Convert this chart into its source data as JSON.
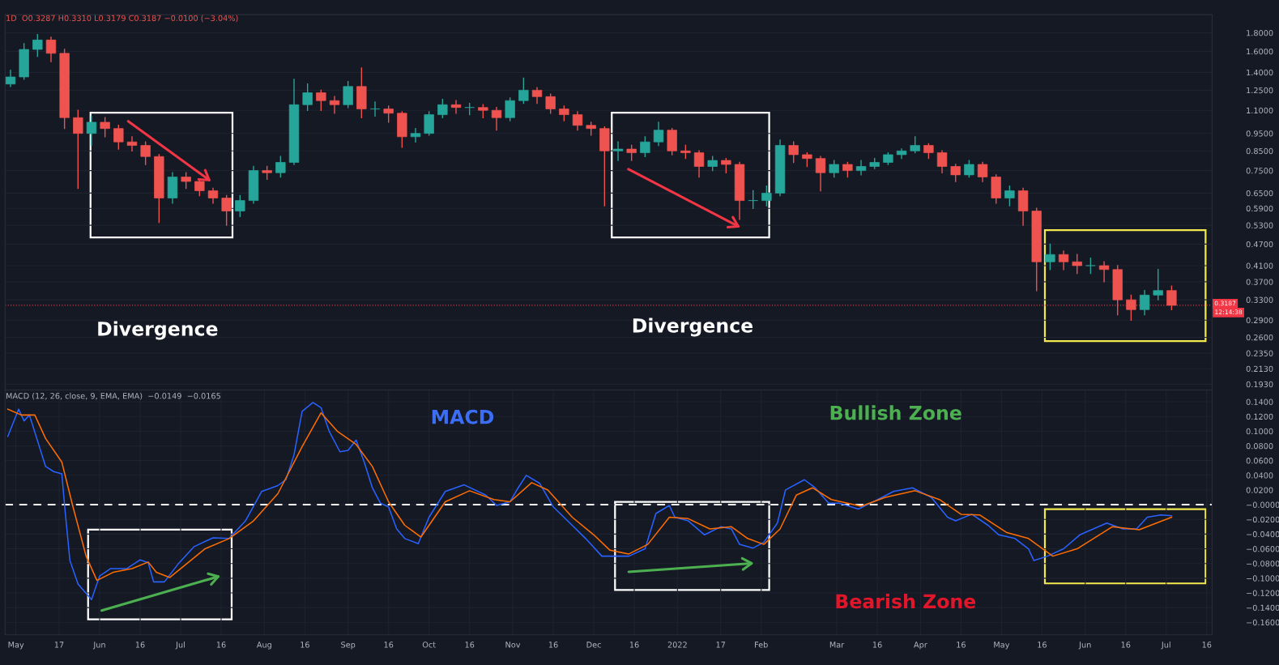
{
  "chart_data": [
    {
      "type": "candlestick",
      "log": "y",
      "tick_labels": "y",
      "grid": "y",
      "colors": [
        "#26a69a",
        "#26a69a",
        "#26a69a",
        "#ef5350",
        "#ef5350",
        "#ef5350",
        "#26a69a",
        "#ef5350",
        "#ef5350",
        "#ef5350",
        "#ef5350",
        "#ef5350",
        "#26a69a",
        "#ef5350",
        "#ef5350",
        "#ef5350",
        "#ef5350",
        "#26a69a",
        "#26a69a",
        "#ef5350",
        "#26a69a",
        "#26a69a",
        "#26a69a",
        "#ef5350",
        "#ef5350",
        "#26a69a",
        "#ef5350",
        "#26a69a",
        "#ef5350",
        "#ef5350",
        "#26a69a",
        "#26a69a",
        "#26a69a",
        "#ef5350",
        "#26a69a",
        "#ef5350",
        "#ef5350",
        "#26a69a",
        "#26a69a",
        "#ef5350",
        "#ef5350",
        "#ef5350",
        "#ef5350",
        "#ef5350",
        "#ef5350",
        "#26a69a",
        "#ef5350",
        "#26a69a",
        "#26a69a",
        "#ef5350",
        "#ef5350",
        "#ef5350",
        "#26a69a",
        "#ef5350",
        "#ef5350",
        "#26a69a",
        "#26a69a",
        "#26a69a",
        "#ef5350",
        "#ef5350",
        "#ef5350",
        "#26a69a",
        "#ef5350",
        "#26a69a",
        "#26a69a",
        "#26a69a",
        "#26a69a",
        "#26a69a",
        "#ef5350",
        "#ef5350",
        "#ef5350",
        "#26a69a",
        "#ef5350",
        "#ef5350",
        "#26a69a",
        "#ef5350",
        "#ef5350",
        "#26a69a",
        "#ef5350",
        "#ef5350",
        "#26a69a",
        "#ef5350",
        "#ef5350",
        "#ef5350",
        "#26a69a",
        "#26a69a",
        "#ef5350"
      ],
      "x": [
        "2021-04-29",
        "2021-05-04",
        "2021-05-09",
        "2021-05-14",
        "2021-05-19",
        "2021-05-24",
        "2021-05-29",
        "2021-06-03",
        "2021-06-08",
        "2021-06-13",
        "2021-06-18",
        "2021-06-23",
        "2021-06-28",
        "2021-07-03",
        "2021-07-08",
        "2021-07-13",
        "2021-07-18",
        "2021-07-23",
        "2021-07-28",
        "2021-08-02",
        "2021-08-07",
        "2021-08-12",
        "2021-08-17",
        "2021-08-22",
        "2021-08-27",
        "2021-09-01",
        "2021-09-06",
        "2021-09-11",
        "2021-09-16",
        "2021-09-21",
        "2021-09-26",
        "2021-10-01",
        "2021-10-06",
        "2021-10-11",
        "2021-10-16",
        "2021-10-21",
        "2021-10-26",
        "2021-10-31",
        "2021-11-05",
        "2021-11-10",
        "2021-11-15",
        "2021-11-20",
        "2021-11-25",
        "2021-11-30",
        "2021-12-05",
        "2021-12-10",
        "2021-12-15",
        "2021-12-20",
        "2021-12-25",
        "2021-12-30",
        "2022-01-04",
        "2022-01-09",
        "2022-01-14",
        "2022-01-19",
        "2022-01-24",
        "2022-01-29",
        "2022-02-03",
        "2022-02-08",
        "2022-02-13",
        "2022-02-18",
        "2022-02-23",
        "2022-02-28",
        "2022-03-05",
        "2022-03-10",
        "2022-03-15",
        "2022-03-20",
        "2022-03-25",
        "2022-03-30",
        "2022-04-04",
        "2022-04-09",
        "2022-04-14",
        "2022-04-19",
        "2022-04-24",
        "2022-04-29",
        "2022-05-04",
        "2022-05-09",
        "2022-05-14",
        "2022-05-19",
        "2022-05-24",
        "2022-05-29",
        "2022-06-03",
        "2022-06-08",
        "2022-06-13",
        "2022-06-18",
        "2022-06-23",
        "2022-06-28",
        "2022-07-03"
      ],
      "ohlc": [
        [
          1.3,
          1.42,
          1.28,
          1.36
        ],
        [
          1.36,
          1.68,
          1.34,
          1.62
        ],
        [
          1.62,
          1.78,
          1.55,
          1.72
        ],
        [
          1.72,
          1.75,
          1.5,
          1.58
        ],
        [
          1.58,
          1.62,
          0.98,
          1.05
        ],
        [
          1.05,
          1.1,
          0.67,
          0.95
        ],
        [
          0.95,
          1.06,
          0.88,
          1.02
        ],
        [
          1.02,
          1.05,
          0.93,
          0.98
        ],
        [
          0.98,
          1.0,
          0.86,
          0.9
        ],
        [
          0.9,
          0.93,
          0.85,
          0.88
        ],
        [
          0.88,
          0.9,
          0.78,
          0.82
        ],
        [
          0.82,
          0.83,
          0.54,
          0.63
        ],
        [
          0.63,
          0.74,
          0.61,
          0.72
        ],
        [
          0.72,
          0.74,
          0.67,
          0.7
        ],
        [
          0.7,
          0.71,
          0.64,
          0.66
        ],
        [
          0.66,
          0.67,
          0.61,
          0.63
        ],
        [
          0.63,
          0.64,
          0.53,
          0.58
        ],
        [
          0.58,
          0.64,
          0.56,
          0.62
        ],
        [
          0.62,
          0.77,
          0.61,
          0.75
        ],
        [
          0.75,
          0.77,
          0.71,
          0.74
        ],
        [
          0.74,
          0.82,
          0.72,
          0.79
        ],
        [
          0.79,
          1.34,
          0.78,
          1.14
        ],
        [
          1.14,
          1.3,
          1.1,
          1.23
        ],
        [
          1.23,
          1.25,
          1.1,
          1.17
        ],
        [
          1.17,
          1.2,
          1.08,
          1.14
        ],
        [
          1.14,
          1.32,
          1.12,
          1.28
        ],
        [
          1.28,
          1.44,
          1.05,
          1.11
        ],
        [
          1.11,
          1.16,
          1.06,
          1.11
        ],
        [
          1.11,
          1.13,
          1.02,
          1.08
        ],
        [
          1.08,
          1.09,
          0.87,
          0.93
        ],
        [
          0.93,
          0.98,
          0.9,
          0.95
        ],
        [
          0.95,
          1.09,
          0.94,
          1.07
        ],
        [
          1.07,
          1.18,
          1.05,
          1.14
        ],
        [
          1.14,
          1.17,
          1.08,
          1.12
        ],
        [
          1.12,
          1.15,
          1.07,
          1.12
        ],
        [
          1.12,
          1.14,
          1.05,
          1.1
        ],
        [
          1.1,
          1.12,
          0.97,
          1.05
        ],
        [
          1.05,
          1.19,
          1.03,
          1.17
        ],
        [
          1.17,
          1.35,
          1.15,
          1.25
        ],
        [
          1.25,
          1.27,
          1.15,
          1.2
        ],
        [
          1.2,
          1.22,
          1.08,
          1.11
        ],
        [
          1.11,
          1.13,
          1.03,
          1.07
        ],
        [
          1.07,
          1.09,
          0.97,
          1.0
        ],
        [
          1.0,
          1.02,
          0.94,
          0.98
        ],
        [
          0.98,
          0.99,
          0.6,
          0.85
        ],
        [
          0.85,
          0.9,
          0.8,
          0.86
        ],
        [
          0.86,
          0.88,
          0.8,
          0.84
        ],
        [
          0.84,
          0.93,
          0.82,
          0.9
        ],
        [
          0.9,
          1.02,
          0.88,
          0.97
        ],
        [
          0.97,
          0.98,
          0.83,
          0.85
        ],
        [
          0.85,
          0.88,
          0.81,
          0.84
        ],
        [
          0.84,
          0.85,
          0.72,
          0.77
        ],
        [
          0.77,
          0.82,
          0.75,
          0.8
        ],
        [
          0.8,
          0.81,
          0.74,
          0.78
        ],
        [
          0.78,
          0.79,
          0.55,
          0.62
        ],
        [
          0.62,
          0.66,
          0.59,
          0.62
        ],
        [
          0.62,
          0.68,
          0.6,
          0.65
        ],
        [
          0.65,
          0.91,
          0.64,
          0.88
        ],
        [
          0.88,
          0.9,
          0.79,
          0.83
        ],
        [
          0.83,
          0.84,
          0.77,
          0.81
        ],
        [
          0.81,
          0.82,
          0.66,
          0.74
        ],
        [
          0.74,
          0.8,
          0.72,
          0.78
        ],
        [
          0.78,
          0.79,
          0.72,
          0.75
        ],
        [
          0.75,
          0.8,
          0.73,
          0.77
        ],
        [
          0.77,
          0.81,
          0.76,
          0.79
        ],
        [
          0.79,
          0.84,
          0.78,
          0.83
        ],
        [
          0.83,
          0.86,
          0.81,
          0.85
        ],
        [
          0.85,
          0.93,
          0.84,
          0.88
        ],
        [
          0.88,
          0.89,
          0.81,
          0.84
        ],
        [
          0.84,
          0.85,
          0.74,
          0.77
        ],
        [
          0.77,
          0.78,
          0.7,
          0.73
        ],
        [
          0.73,
          0.8,
          0.72,
          0.78
        ],
        [
          0.78,
          0.79,
          0.7,
          0.72
        ],
        [
          0.72,
          0.73,
          0.61,
          0.63
        ],
        [
          0.63,
          0.68,
          0.6,
          0.66
        ],
        [
          0.66,
          0.67,
          0.53,
          0.58
        ],
        [
          0.58,
          0.59,
          0.35,
          0.42
        ],
        [
          0.42,
          0.47,
          0.4,
          0.44
        ],
        [
          0.44,
          0.45,
          0.4,
          0.42
        ],
        [
          0.42,
          0.44,
          0.39,
          0.41
        ],
        [
          0.41,
          0.43,
          0.39,
          0.41
        ],
        [
          0.41,
          0.42,
          0.37,
          0.4
        ],
        [
          0.4,
          0.41,
          0.3,
          0.33
        ],
        [
          0.33,
          0.34,
          0.29,
          0.31
        ],
        [
          0.31,
          0.35,
          0.3,
          0.34
        ],
        [
          0.34,
          0.4,
          0.33,
          0.35
        ],
        [
          0.35,
          0.36,
          0.31,
          0.3187
        ]
      ],
      "xlim": [
        "2021-04-27",
        "2022-07-18"
      ],
      "ylim": [
        0.186,
        2.02
      ],
      "yticks": [
        {
          "value": 1.8,
          "label": "1.8000"
        },
        {
          "value": 1.6,
          "label": "1.6000"
        },
        {
          "value": 1.4,
          "label": "1.4000"
        },
        {
          "value": 1.25,
          "label": "1.2500"
        },
        {
          "value": 1.1,
          "label": "1.1000"
        },
        {
          "value": 0.95,
          "label": "0.9500"
        },
        {
          "value": 0.85,
          "label": "0.8500"
        },
        {
          "value": 0.75,
          "label": "0.7500"
        },
        {
          "value": 0.65,
          "label": "0.6500"
        },
        {
          "value": 0.59,
          "label": "0.5900"
        },
        {
          "value": 0.53,
          "label": "0.5300"
        },
        {
          "value": 0.47,
          "label": "0.4700"
        },
        {
          "value": 0.41,
          "label": "0.4100"
        },
        {
          "value": 0.37,
          "label": "0.3700"
        },
        {
          "value": 0.33,
          "label": "0.3300"
        },
        {
          "value": 0.29,
          "label": "0.2900"
        },
        {
          "value": 0.26,
          "label": "0.2600"
        },
        {
          "value": 0.235,
          "label": "0.2350"
        },
        {
          "value": 0.213,
          "label": "0.2130"
        },
        {
          "value": 0.193,
          "label": "0.1930"
        }
      ],
      "ref_lines": [
        {
          "axis": "y",
          "value": 0.3187,
          "label": "0.3187",
          "color": "#f23645",
          "line_style": "dotted"
        }
      ],
      "annotations": [
        "1D  O0.3287 H0.3310 L0.3179 C0.3187 −0.0100 (−3.04%)",
        "Divergence",
        "Divergence",
        "12:14:38"
      ]
    },
    {
      "type": "line",
      "grid": true,
      "series": [
        {
          "color": "#2962ff",
          "x": [
            "2021-04-28",
            "2021-05-02",
            "2021-05-04",
            "2021-05-06",
            "2021-05-12",
            "2021-05-15",
            "2021-05-18",
            "2021-05-19",
            "2021-05-21",
            "2021-05-24",
            "2021-05-29",
            "2021-06-01",
            "2021-06-05",
            "2021-06-11",
            "2021-06-16",
            "2021-06-19",
            "2021-06-21",
            "2021-06-25",
            "2021-06-30",
            "2021-07-06",
            "2021-07-13",
            "2021-07-19",
            "2021-07-25",
            "2021-07-31",
            "2021-08-06",
            "2021-08-09",
            "2021-08-12",
            "2021-08-15",
            "2021-08-19",
            "2021-08-22",
            "2021-08-25",
            "2021-08-29",
            "2021-09-01",
            "2021-09-04",
            "2021-09-07",
            "2021-09-10",
            "2021-09-13",
            "2021-09-16",
            "2021-09-19",
            "2021-09-22",
            "2021-09-27",
            "2021-10-01",
            "2021-10-07",
            "2021-10-14",
            "2021-10-22",
            "2021-10-26",
            "2021-10-31",
            "2021-11-03",
            "2021-11-06",
            "2021-11-11",
            "2021-11-16",
            "2021-11-23",
            "2021-11-28",
            "2021-12-04",
            "2021-12-14",
            "2021-12-20",
            "2021-12-24",
            "2021-12-29",
            "2021-12-31",
            "2022-01-05",
            "2022-01-11",
            "2022-01-17",
            "2022-01-21",
            "2022-01-24",
            "2022-01-29",
            "2022-02-02",
            "2022-02-07",
            "2022-02-10",
            "2022-02-17",
            "2022-02-21",
            "2022-02-26",
            "2022-03-02",
            "2022-03-09",
            "2022-03-14",
            "2022-03-22",
            "2022-03-29",
            "2022-04-05",
            "2022-04-11",
            "2022-04-14",
            "2022-04-20",
            "2022-04-26",
            "2022-04-30",
            "2022-05-06",
            "2022-05-11",
            "2022-05-13",
            "2022-05-18",
            "2022-05-24",
            "2022-05-30",
            "2022-06-09",
            "2022-06-15",
            "2022-06-20",
            "2022-06-24",
            "2022-06-29",
            "2022-07-03"
          ],
          "values": [
            0.093,
            0.13,
            0.114,
            0.122,
            0.052,
            0.045,
            0.042,
            0.0,
            -0.076,
            -0.108,
            -0.129,
            -0.097,
            -0.087,
            -0.087,
            -0.075,
            -0.079,
            -0.105,
            -0.105,
            -0.081,
            -0.057,
            -0.045,
            -0.046,
            -0.022,
            0.018,
            0.026,
            0.034,
            0.068,
            0.127,
            0.139,
            0.132,
            0.1,
            0.072,
            0.074,
            0.088,
            0.058,
            0.023,
            0.002,
            -0.003,
            -0.033,
            -0.046,
            -0.053,
            -0.017,
            0.018,
            0.027,
            0.013,
            -0.001,
            0.004,
            0.023,
            0.04,
            0.029,
            -0.003,
            -0.028,
            -0.046,
            -0.07,
            -0.07,
            -0.06,
            -0.012,
            -0.001,
            -0.017,
            -0.022,
            -0.041,
            -0.03,
            -0.033,
            -0.054,
            -0.059,
            -0.051,
            -0.025,
            0.02,
            0.034,
            0.023,
            0.002,
            0.002,
            -0.006,
            0.003,
            0.018,
            0.023,
            0.01,
            -0.017,
            -0.022,
            -0.013,
            -0.028,
            -0.041,
            -0.046,
            -0.06,
            -0.076,
            -0.07,
            -0.06,
            -0.041,
            -0.025,
            -0.033,
            -0.033,
            -0.017,
            -0.014,
            -0.015
          ]
        },
        {
          "color": "#ff6d00",
          "x": [
            "2021-04-28",
            "2021-05-03",
            "2021-05-08",
            "2021-05-12",
            "2021-05-18",
            "2021-05-22",
            "2021-05-27",
            "2021-05-31",
            "2021-06-06",
            "2021-06-13",
            "2021-06-19",
            "2021-06-22",
            "2021-06-27",
            "2021-07-03",
            "2021-07-10",
            "2021-07-19",
            "2021-07-28",
            "2021-08-06",
            "2021-08-15",
            "2021-08-22",
            "2021-08-28",
            "2021-09-04",
            "2021-09-10",
            "2021-09-16",
            "2021-09-22",
            "2021-09-28",
            "2021-10-07",
            "2021-10-16",
            "2021-10-25",
            "2021-10-31",
            "2021-11-08",
            "2021-11-14",
            "2021-11-23",
            "2021-12-01",
            "2021-12-07",
            "2021-12-14",
            "2021-12-21",
            "2021-12-29",
            "2022-01-05",
            "2022-01-13",
            "2022-01-21",
            "2022-01-27",
            "2022-02-02",
            "2022-02-08",
            "2022-02-14",
            "2022-02-20",
            "2022-02-27",
            "2022-03-10",
            "2022-03-19",
            "2022-03-30",
            "2022-04-08",
            "2022-04-16",
            "2022-04-23",
            "2022-05-03",
            "2022-05-11",
            "2022-05-20",
            "2022-05-29",
            "2022-06-11",
            "2022-06-21",
            "2022-07-03"
          ],
          "values": [
            0.13,
            0.122,
            0.122,
            0.09,
            0.058,
            -0.001,
            -0.07,
            -0.103,
            -0.092,
            -0.087,
            -0.078,
            -0.092,
            -0.099,
            -0.081,
            -0.06,
            -0.046,
            -0.022,
            0.015,
            0.079,
            0.125,
            0.1,
            0.082,
            0.052,
            0.004,
            -0.028,
            -0.044,
            0.004,
            0.019,
            0.007,
            0.004,
            0.03,
            0.02,
            -0.017,
            -0.041,
            -0.062,
            -0.067,
            -0.054,
            -0.017,
            -0.019,
            -0.033,
            -0.03,
            -0.046,
            -0.054,
            -0.033,
            0.013,
            0.023,
            0.007,
            -0.002,
            0.01,
            0.019,
            0.007,
            -0.013,
            -0.014,
            -0.038,
            -0.046,
            -0.07,
            -0.06,
            -0.03,
            -0.034,
            -0.017
          ]
        }
      ],
      "xlim": [
        "2021-04-27",
        "2022-07-18"
      ],
      "xticks": [
        {
          "value": "2021-05-01",
          "label": "May"
        },
        {
          "value": "2021-05-17",
          "label": "17"
        },
        {
          "value": "2021-06-01",
          "label": "Jun"
        },
        {
          "value": "2021-06-16",
          "label": "16"
        },
        {
          "value": "2021-07-01",
          "label": "Jul"
        },
        {
          "value": "2021-07-16",
          "label": "16"
        },
        {
          "value": "2021-08-01",
          "label": "Aug"
        },
        {
          "value": "2021-08-16",
          "label": "16"
        },
        {
          "value": "2021-09-01",
          "label": "Sep"
        },
        {
          "value": "2021-09-16",
          "label": "16"
        },
        {
          "value": "2021-10-01",
          "label": "Oct"
        },
        {
          "value": "2021-10-16",
          "label": "16"
        },
        {
          "value": "2021-11-01",
          "label": "Nov"
        },
        {
          "value": "2021-11-16",
          "label": "16"
        },
        {
          "value": "2021-12-01",
          "label": "Dec"
        },
        {
          "value": "2021-12-16",
          "label": "16"
        },
        {
          "value": "2022-01-01",
          "label": "2022"
        },
        {
          "value": "2022-01-17",
          "label": "17"
        },
        {
          "value": "2022-02-01",
          "label": "Feb"
        },
        {
          "value": "2022-03-01",
          "label": "Mar"
        },
        {
          "value": "2022-03-16",
          "label": "16"
        },
        {
          "value": "2022-04-01",
          "label": "Apr"
        },
        {
          "value": "2022-04-16",
          "label": "16"
        },
        {
          "value": "2022-05-01",
          "label": "May"
        },
        {
          "value": "2022-05-16",
          "label": "16"
        },
        {
          "value": "2022-06-01",
          "label": "Jun"
        },
        {
          "value": "2022-06-16",
          "label": "16"
        },
        {
          "value": "2022-07-01",
          "label": "Jul"
        },
        {
          "value": "2022-07-16",
          "label": "16"
        }
      ],
      "ylim": [
        -0.177,
        0.156
      ],
      "yticks": [
        {
          "value": 0.14,
          "label": "0.1400"
        },
        {
          "value": 0.12,
          "label": "0.1200"
        },
        {
          "value": 0.1,
          "label": "0.1000"
        },
        {
          "value": 0.08,
          "label": "0.0800"
        },
        {
          "value": 0.06,
          "label": "0.0600"
        },
        {
          "value": 0.04,
          "label": "0.0400"
        },
        {
          "value": 0.02,
          "label": "0.0200"
        },
        {
          "value": 0,
          "label": "−0.0000"
        },
        {
          "value": -0.02,
          "label": "−0.0200"
        },
        {
          "value": -0.04,
          "label": "−0.0400"
        },
        {
          "value": -0.06,
          "label": "−0.0600"
        },
        {
          "value": -0.08,
          "label": "−0.0800"
        },
        {
          "value": -0.1,
          "label": "−0.1000"
        },
        {
          "value": -0.12,
          "label": "−0.1200"
        },
        {
          "value": -0.14,
          "label": "−0.1400"
        },
        {
          "value": -0.16,
          "label": "−0.1600"
        }
      ],
      "ref_lines": [
        {
          "axis": "y",
          "value": 0,
          "color": "#ffffff",
          "line_style": "dashed"
        }
      ],
      "annotations": [
        "MACD (12, 26, close, 9, EMA, EMA)  −0.0149  −0.0165",
        "MACD",
        "Bullish Zone",
        "Bearish Zone"
      ]
    }
  ]
}
